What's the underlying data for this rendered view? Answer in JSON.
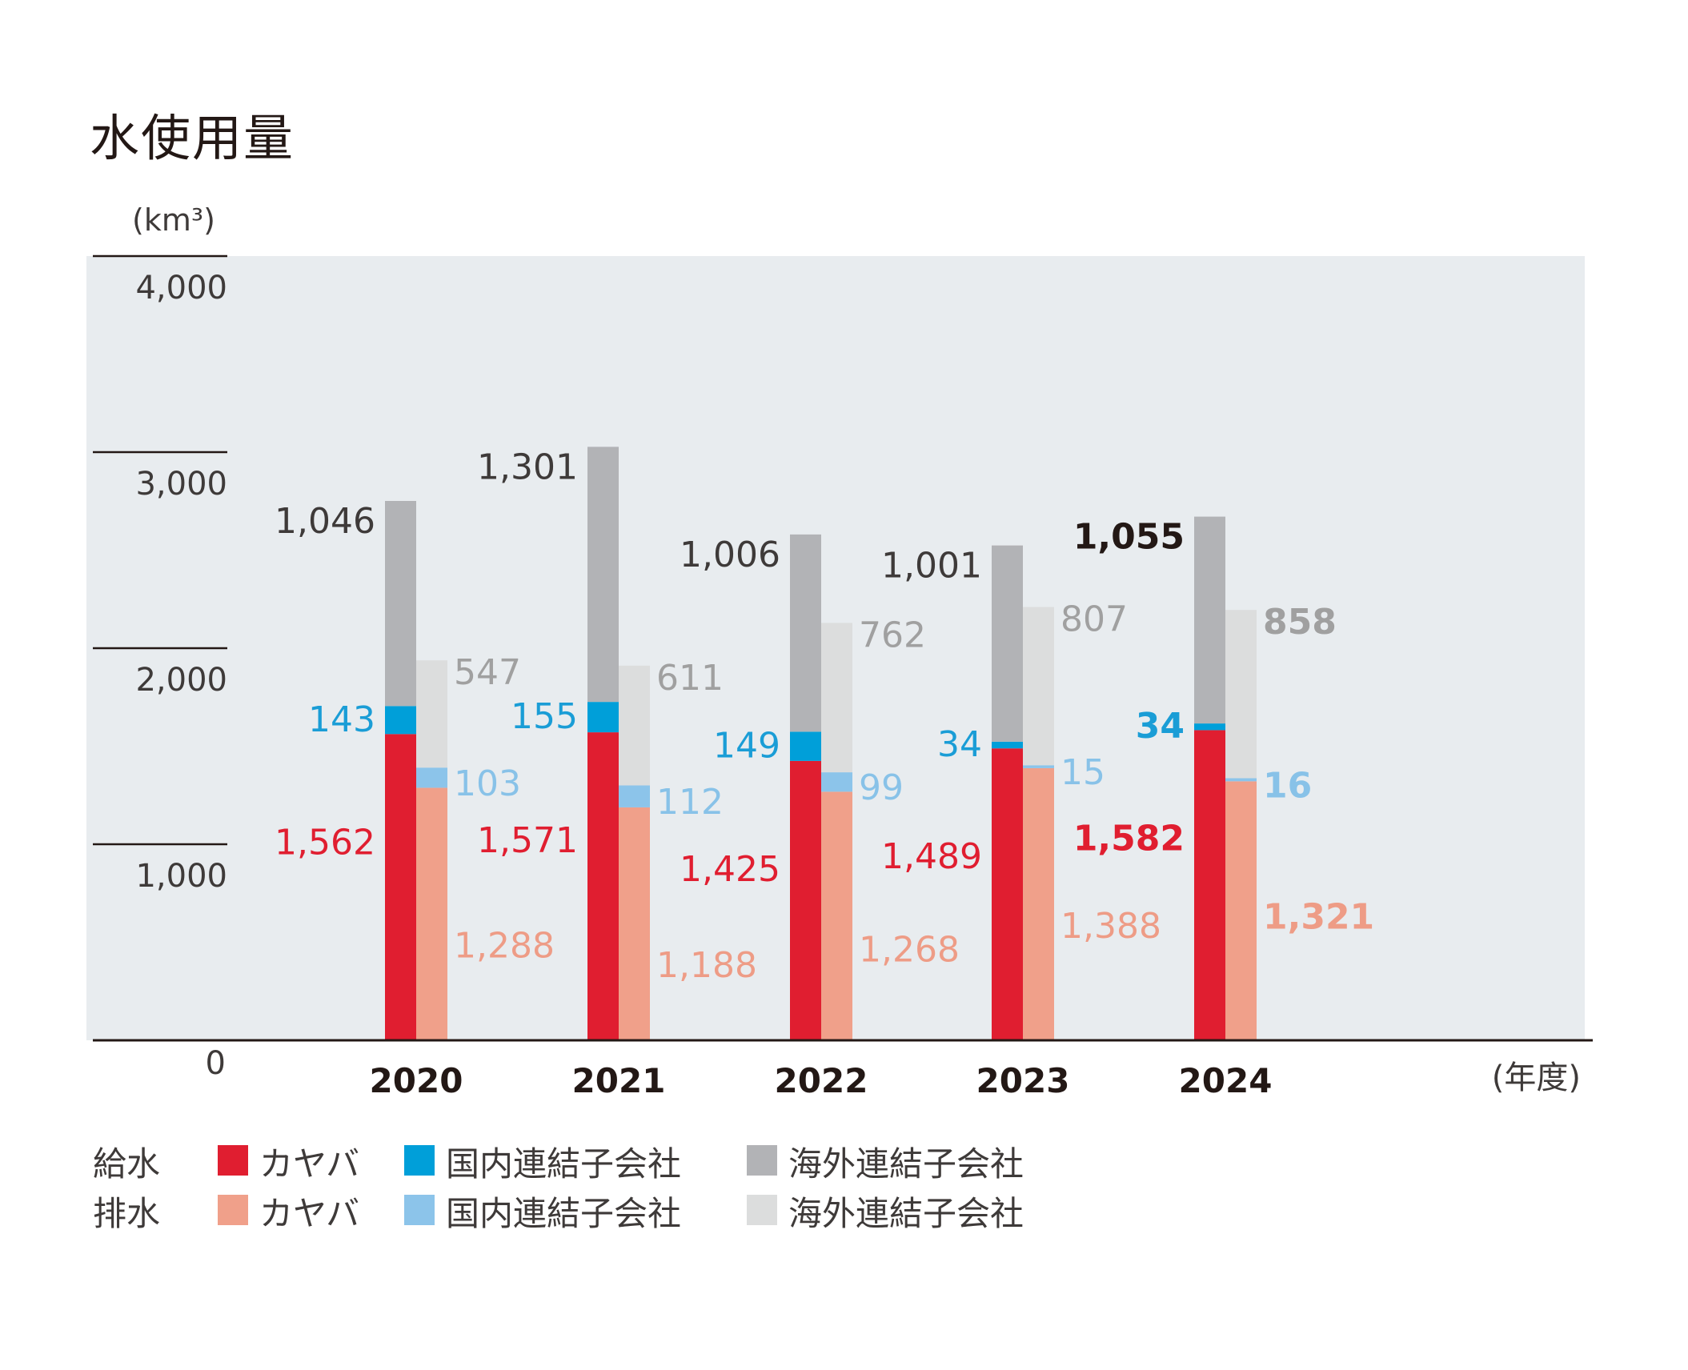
{
  "chart_data": {
    "type": "bar",
    "title": "水使用量",
    "unit": "(km³)",
    "xunit": "(年度)",
    "ylim": [
      0,
      4000
    ],
    "yticks": [
      0,
      1000,
      2000,
      3000,
      4000
    ],
    "ytick_labels": [
      "0",
      "1,000",
      "2,000",
      "3,000",
      "4,000"
    ],
    "categories": [
      "2020",
      "2021",
      "2022",
      "2023",
      "2024"
    ],
    "highlight_category": "2024",
    "groups": [
      {
        "name": "給水",
        "series": [
          {
            "name": "カヤバ",
            "color": "#e01e30",
            "label_color": "#e01e30",
            "values": [
              1562,
              1571,
              1425,
              1489,
              1582
            ],
            "labels": [
              "1,562",
              "1,571",
              "1,425",
              "1,489",
              "1,582"
            ]
          },
          {
            "name": "国内連結子会社",
            "color": "#009fd9",
            "label_color": "#1a9dd6",
            "values": [
              143,
              155,
              149,
              34,
              34
            ],
            "labels": [
              "143",
              "155",
              "149",
              "34",
              "34"
            ]
          },
          {
            "name": "海外連結子会社",
            "color": "#b2b3b6",
            "label_color": "#3e3a39",
            "values": [
              1046,
              1301,
              1006,
              1001,
              1055
            ],
            "labels": [
              "1,046",
              "1,301",
              "1,006",
              "1,001",
              "1,055"
            ]
          }
        ]
      },
      {
        "name": "排水",
        "series": [
          {
            "name": "カヤバ",
            "color": "#f0a08a",
            "label_color": "#ee9c86",
            "values": [
              1288,
              1188,
              1268,
              1388,
              1321
            ],
            "labels": [
              "1,288",
              "1,188",
              "1,268",
              "1,388",
              "1,321"
            ]
          },
          {
            "name": "国内連結子会社",
            "color": "#8cc4ea",
            "label_color": "#88c2e8",
            "values": [
              103,
              112,
              99,
              15,
              16
            ],
            "labels": [
              "103",
              "112",
              "99",
              "15",
              "16"
            ]
          },
          {
            "name": "海外連結子会社",
            "color": "#dcdddd",
            "label_color": "#a0a0a0",
            "values": [
              547,
              611,
              762,
              807,
              858
            ],
            "labels": [
              "547",
              "611",
              "762",
              "807",
              "858"
            ]
          }
        ]
      }
    ],
    "plot_background": "#e8ecef",
    "legend_placement": "bottom"
  }
}
